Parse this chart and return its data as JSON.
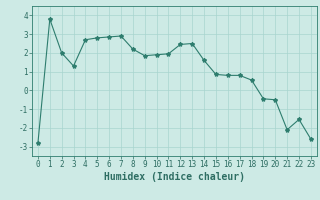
{
  "x": [
    0,
    1,
    2,
    3,
    4,
    5,
    6,
    7,
    8,
    9,
    10,
    11,
    12,
    13,
    14,
    15,
    16,
    17,
    18,
    19,
    20,
    21,
    22,
    23
  ],
  "y": [
    -2.8,
    3.8,
    2.0,
    1.3,
    2.7,
    2.8,
    2.85,
    2.9,
    2.2,
    1.85,
    1.9,
    1.95,
    2.45,
    2.5,
    1.6,
    0.85,
    0.8,
    0.8,
    0.55,
    -0.45,
    -0.5,
    -2.1,
    -1.55,
    -2.6
  ],
  "line_color": "#2e7d6e",
  "marker": "*",
  "marker_size": 3,
  "bg_color": "#cdeae5",
  "grid_color": "#a8d5cf",
  "xlabel": "Humidex (Indice chaleur)",
  "ylim": [
    -3.5,
    4.5
  ],
  "xlim": [
    -0.5,
    23.5
  ],
  "yticks": [
    -3,
    -2,
    -1,
    0,
    1,
    2,
    3,
    4
  ],
  "xticks": [
    0,
    1,
    2,
    3,
    4,
    5,
    6,
    7,
    8,
    9,
    10,
    11,
    12,
    13,
    14,
    15,
    16,
    17,
    18,
    19,
    20,
    21,
    22,
    23
  ],
  "font_color": "#2e6e63",
  "tick_fontsize": 5.5,
  "xlabel_fontsize": 7.0
}
